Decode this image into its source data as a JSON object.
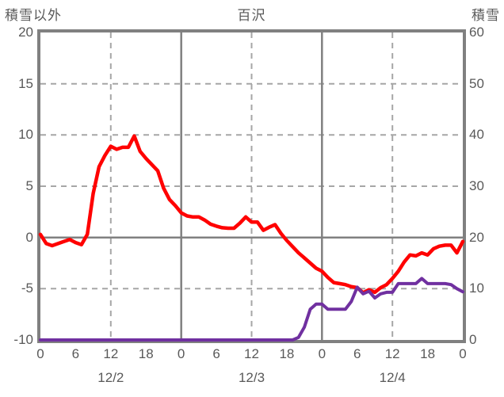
{
  "header": {
    "left_axis_title": "積雪以外",
    "chart_title": "百沢",
    "right_axis_title": "積雪"
  },
  "colors": {
    "text": "#595959",
    "axis_border": "#808080",
    "solid_gridline": "#808080",
    "dashed_gridline": "#a6a6a6",
    "red_series": "#ff0000",
    "purple_series": "#7030a0",
    "background": "#ffffff"
  },
  "chart_data": {
    "type": "line",
    "title": "百沢",
    "left_axis": {
      "label": "積雪以外",
      "min": -10,
      "max": 20,
      "ticks": [
        20,
        15,
        10,
        5,
        0,
        -5,
        -10
      ]
    },
    "right_axis": {
      "label": "積雪",
      "min": 0,
      "max": 60,
      "ticks": [
        60,
        50,
        40,
        30,
        20,
        10,
        0
      ]
    },
    "x_axis": {
      "hours_span": 72,
      "tick_step_hours": 6,
      "tick_labels": [
        "0",
        "6",
        "12",
        "18",
        "0",
        "6",
        "12",
        "18",
        "0",
        "6",
        "12",
        "18",
        "0"
      ],
      "day_labels": [
        {
          "label": "12/2",
          "hour": 12
        },
        {
          "label": "12/3",
          "hour": 36
        },
        {
          "label": "12/4",
          "hour": 60
        }
      ]
    },
    "grid": {
      "h_dashed_left_values": [
        15,
        10,
        5,
        -5
      ],
      "h_solid_left_values": [
        0
      ],
      "v_dashed_hours": [
        12,
        36,
        60
      ],
      "v_solid_hours": [
        24,
        48
      ]
    },
    "series": [
      {
        "name": "積雪以外",
        "axis": "left",
        "color": "#ff0000",
        "x_hours": [
          0,
          1,
          2,
          3,
          4,
          5,
          6,
          7,
          8,
          9,
          10,
          11,
          12,
          13,
          14,
          15,
          16,
          17,
          18,
          19,
          20,
          21,
          22,
          23,
          24,
          25,
          26,
          27,
          28,
          29,
          30,
          31,
          32,
          33,
          34,
          35,
          36,
          37,
          38,
          39,
          40,
          41,
          42,
          43,
          44,
          45,
          46,
          47,
          48,
          49,
          50,
          51,
          52,
          53,
          54,
          55,
          56,
          57,
          58,
          59,
          60,
          61,
          62,
          63,
          64,
          65,
          66,
          67,
          68,
          69,
          70,
          71,
          72
        ],
        "values": [
          0.3,
          -0.6,
          -0.8,
          -0.6,
          -0.4,
          -0.2,
          -0.5,
          -0.7,
          0.3,
          4.3,
          6.9,
          8.0,
          8.9,
          8.6,
          8.8,
          8.8,
          9.9,
          8.4,
          7.7,
          7.1,
          6.5,
          4.8,
          3.7,
          3.1,
          2.4,
          2.1,
          2.0,
          2.0,
          1.7,
          1.3,
          1.1,
          0.95,
          0.9,
          0.9,
          1.4,
          2.0,
          1.5,
          1.5,
          0.7,
          1.0,
          1.25,
          0.4,
          -0.3,
          -0.9,
          -1.5,
          -2.0,
          -2.5,
          -3.0,
          -3.3,
          -3.9,
          -4.4,
          -4.5,
          -4.6,
          -4.8,
          -4.9,
          -5.4,
          -5.1,
          -5.35,
          -4.9,
          -4.6,
          -4.0,
          -3.3,
          -2.4,
          -1.7,
          -1.8,
          -1.5,
          -1.7,
          -1.1,
          -0.85,
          -0.75,
          -0.75,
          -1.5,
          -0.4
        ]
      },
      {
        "name": "積雪",
        "axis": "right",
        "color": "#7030a0",
        "x_hours": [
          0,
          1,
          2,
          3,
          4,
          5,
          6,
          7,
          8,
          9,
          10,
          11,
          12,
          13,
          14,
          15,
          16,
          17,
          18,
          19,
          20,
          21,
          22,
          23,
          24,
          25,
          26,
          27,
          28,
          29,
          30,
          31,
          32,
          33,
          34,
          35,
          36,
          37,
          38,
          39,
          40,
          41,
          42,
          43,
          44,
          45,
          46,
          47,
          48,
          49,
          50,
          51,
          52,
          53,
          54,
          55,
          56,
          57,
          58,
          59,
          60,
          61,
          62,
          63,
          64,
          65,
          66,
          67,
          68,
          69,
          70,
          71,
          72
        ],
        "values": [
          0,
          0,
          0,
          0,
          0,
          0,
          0,
          0,
          0,
          0,
          0,
          0,
          0,
          0,
          0,
          0,
          0,
          0,
          0,
          0,
          0,
          0,
          0,
          0,
          0,
          0,
          0,
          0,
          0,
          0,
          0,
          0,
          0,
          0,
          0,
          0,
          0,
          0,
          0,
          0,
          0,
          0,
          0,
          0,
          0.5,
          2.5,
          6,
          7,
          7,
          6,
          6,
          6,
          6,
          7.5,
          10.3,
          9,
          9.5,
          8.2,
          9,
          9.3,
          9.3,
          11,
          11,
          11,
          11,
          12,
          11,
          11,
          11,
          11,
          10.8,
          10,
          9.4
        ]
      }
    ]
  }
}
